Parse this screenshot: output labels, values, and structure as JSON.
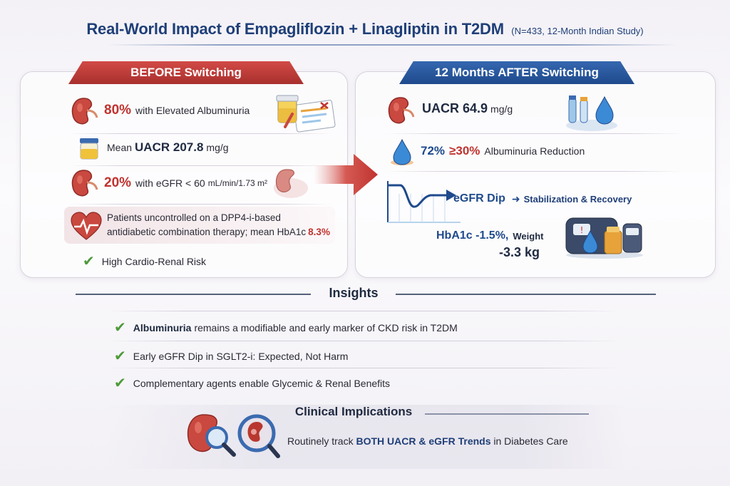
{
  "header": {
    "title": "Real-World Impact of Empagliflozin + Linagliptin in T2DM",
    "subtitle": "(N=433, 12-Month Indian Study)"
  },
  "before": {
    "banner": "BEFORE Switching",
    "rows": [
      {
        "value": "80%",
        "text": "with Elevated Albuminuria",
        "icon": "kidney-icon"
      },
      {
        "prefix": "Mean",
        "value": "UACR 207.8",
        "text": "mg/g",
        "icon": "urine-cup-icon"
      },
      {
        "value": "20%",
        "text": "with eGFR < 60",
        "unit": "mL/min/1.73 m²",
        "icon": "kidney-icon"
      },
      {
        "line1": "Patients uncontrolled on a DPP4-i-based",
        "line2": "antidiabetic combination therapy; mean HbA1c",
        "value": "8.3%",
        "icon": "heart-icon"
      },
      {
        "text": "High Cardio-Renal Risk",
        "icon": "check-icon"
      }
    ]
  },
  "after": {
    "banner": "12 Months AFTER Switching",
    "rows": [
      {
        "value": "UACR 64.9",
        "text": "mg/g",
        "icon": "kidney-icon"
      },
      {
        "value": "72%",
        "mid": "≥30%",
        "text": "Albuminuria Reduction",
        "icon": "drop-icon"
      },
      {
        "value": "eGFR Dip",
        "text": "Stabilization & Recovery",
        "icon": "trend-chart-icon"
      },
      {
        "value": "HbA1c -1.5%,",
        "label": "Weight",
        "value2": "-3.3 kg",
        "icon": "scale-icon"
      }
    ]
  },
  "insights": {
    "heading": "Insights",
    "items": [
      {
        "bold": "Albuminuria",
        "text": "remains a modifiable and early marker of CKD risk in T2DM"
      },
      {
        "bold": "",
        "text": "Early eGFR Dip in SGLT2-i: Expected, Not Harm"
      },
      {
        "bold": "",
        "text": "Complementary agents enable Glycemic & Renal Benefits"
      }
    ]
  },
  "implications": {
    "heading": "Clinical Implications",
    "pre": "Routinely track",
    "highlight": "BOTH UACR & eGFR Trends",
    "post": "in Diabetes Care"
  },
  "colors": {
    "red": "#c0332f",
    "blue": "#1f4a8c",
    "green": "#4e9a3a",
    "navy": "#1f3f78"
  }
}
